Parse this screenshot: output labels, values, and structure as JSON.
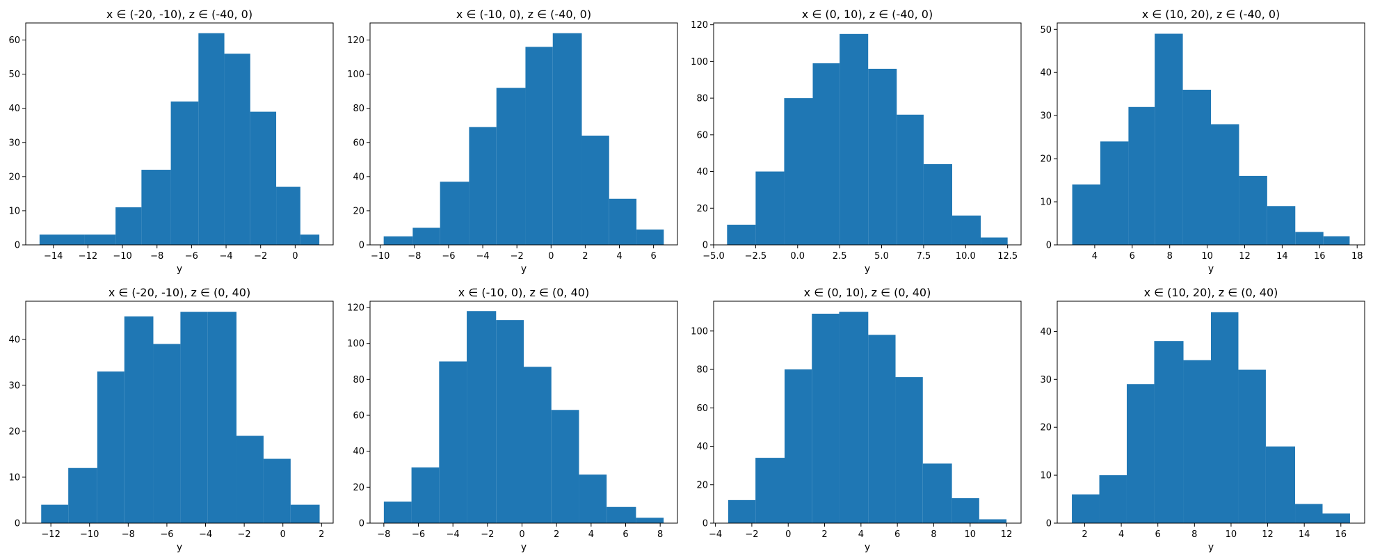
{
  "colors": {
    "bar": "#1f77b4",
    "axis": "#000000",
    "background": "#ffffff"
  },
  "chart_data": [
    {
      "type": "bar",
      "title": "x ∈ (-20, -10), z ∈ (-40, 0)",
      "xlabel": "y",
      "ylabel": "",
      "xlim": [
        -15.6,
        2.2
      ],
      "ylim": [
        0,
        65
      ],
      "grid": false,
      "xticks": [
        -14,
        -12,
        -10,
        -8,
        -6,
        -4,
        -2,
        0
      ],
      "yticks": [
        0,
        10,
        20,
        30,
        40,
        50,
        60
      ],
      "bin_edges": [
        -14.8,
        -12.2,
        -10.4,
        -8.9,
        -7.2,
        -5.6,
        -4.1,
        -2.6,
        -1.1,
        0.3,
        1.4
      ],
      "values": [
        3,
        3,
        11,
        22,
        42,
        62,
        56,
        39,
        17,
        3
      ]
    },
    {
      "type": "bar",
      "title": "x ∈ (-10, 0), z ∈ (-40, 0)",
      "xlabel": "y",
      "ylabel": "",
      "xlim": [
        -10.6,
        7.4
      ],
      "ylim": [
        0,
        130
      ],
      "grid": false,
      "xticks": [
        -10,
        -8,
        -6,
        -4,
        -2,
        0,
        2,
        4,
        6
      ],
      "yticks": [
        0,
        20,
        40,
        60,
        80,
        100,
        120
      ],
      "bin_edges": [
        -9.8,
        -8.1,
        -6.5,
        -4.8,
        -3.2,
        -1.5,
        0.1,
        1.8,
        3.4,
        5.0,
        6.6
      ],
      "values": [
        5,
        10,
        37,
        69,
        92,
        116,
        124,
        64,
        27,
        9
      ]
    },
    {
      "type": "bar",
      "title": "x ∈ (0, 10), z ∈ (-40, 0)",
      "xlabel": "y",
      "ylabel": "",
      "xlim": [
        -5.0,
        13.3
      ],
      "ylim": [
        0,
        121
      ],
      "grid": false,
      "xticks": [
        -5.0,
        -2.5,
        0.0,
        2.5,
        5.0,
        7.5,
        10.0,
        12.5
      ],
      "yticks": [
        0,
        20,
        40,
        60,
        80,
        100,
        120
      ],
      "bin_edges": [
        -4.2,
        -2.5,
        -0.8,
        0.9,
        2.5,
        4.2,
        5.9,
        7.5,
        9.2,
        10.9,
        12.5
      ],
      "values": [
        11,
        40,
        80,
        99,
        115,
        96,
        71,
        44,
        16,
        4
      ]
    },
    {
      "type": "bar",
      "title": "x ∈ (10, 20), z ∈ (-40, 0)",
      "xlabel": "y",
      "ylabel": "",
      "xlim": [
        2.0,
        18.4
      ],
      "ylim": [
        0,
        51.5
      ],
      "grid": false,
      "xticks": [
        4,
        6,
        8,
        10,
        12,
        14,
        16,
        18
      ],
      "yticks": [
        0,
        10,
        20,
        30,
        40,
        50
      ],
      "bin_edges": [
        2.8,
        4.3,
        5.8,
        7.2,
        8.7,
        10.2,
        11.7,
        13.2,
        14.7,
        16.2,
        17.6
      ],
      "values": [
        14,
        24,
        32,
        49,
        36,
        28,
        16,
        9,
        3,
        2
      ]
    },
    {
      "type": "bar",
      "title": "x ∈ (-20, -10), z ∈ (0, 40)",
      "xlabel": "y",
      "ylabel": "",
      "xlim": [
        -13.3,
        2.6
      ],
      "ylim": [
        0,
        48.3
      ],
      "grid": false,
      "xticks": [
        -12,
        -10,
        -8,
        -6,
        -4,
        -2,
        0,
        2
      ],
      "yticks": [
        0,
        10,
        20,
        30,
        40
      ],
      "bin_edges": [
        -12.5,
        -11.1,
        -9.6,
        -8.2,
        -6.7,
        -5.3,
        -3.9,
        -2.4,
        -1.0,
        0.4,
        1.9
      ],
      "values": [
        4,
        12,
        33,
        45,
        39,
        46,
        46,
        19,
        14,
        4
      ]
    },
    {
      "type": "bar",
      "title": "x ∈ (-10, 0), z ∈ (0, 40)",
      "xlabel": "y",
      "ylabel": "",
      "xlim": [
        -8.8,
        9.0
      ],
      "ylim": [
        0,
        123.5
      ],
      "grid": false,
      "xticks": [
        -8,
        -6,
        -4,
        -2,
        0,
        2,
        4,
        6,
        8
      ],
      "yticks": [
        0,
        20,
        40,
        60,
        80,
        100,
        120
      ],
      "bin_edges": [
        -8.0,
        -6.4,
        -4.8,
        -3.2,
        -1.5,
        0.1,
        1.7,
        3.3,
        4.9,
        6.6,
        8.2
      ],
      "values": [
        12,
        31,
        90,
        118,
        113,
        87,
        63,
        27,
        9,
        3
      ]
    },
    {
      "type": "bar",
      "title": "x ∈ (0, 10), z ∈ (0, 40)",
      "xlabel": "y",
      "ylabel": "",
      "xlim": [
        -4.1,
        12.8
      ],
      "ylim": [
        0,
        115.5
      ],
      "grid": false,
      "xticks": [
        -4,
        -2,
        0,
        2,
        4,
        6,
        8,
        10,
        12
      ],
      "yticks": [
        0,
        20,
        40,
        60,
        80,
        100
      ],
      "bin_edges": [
        -3.3,
        -1.8,
        -0.2,
        1.3,
        2.8,
        4.4,
        5.9,
        7.4,
        9.0,
        10.5,
        12.0
      ],
      "values": [
        12,
        34,
        80,
        109,
        110,
        98,
        76,
        31,
        13,
        2
      ]
    },
    {
      "type": "bar",
      "title": "x ∈ (10, 20), z ∈ (0, 40)",
      "xlabel": "y",
      "ylabel": "",
      "xlim": [
        0.5,
        17.3
      ],
      "ylim": [
        0,
        46.3
      ],
      "grid": false,
      "xticks": [
        2,
        4,
        6,
        8,
        10,
        12,
        14,
        16
      ],
      "yticks": [
        0,
        10,
        20,
        30,
        40
      ],
      "bin_edges": [
        1.3,
        2.8,
        4.3,
        5.8,
        7.4,
        8.9,
        10.4,
        11.9,
        13.5,
        15.0,
        16.5
      ],
      "values": [
        6,
        10,
        29,
        38,
        34,
        44,
        32,
        16,
        4,
        2
      ]
    }
  ]
}
